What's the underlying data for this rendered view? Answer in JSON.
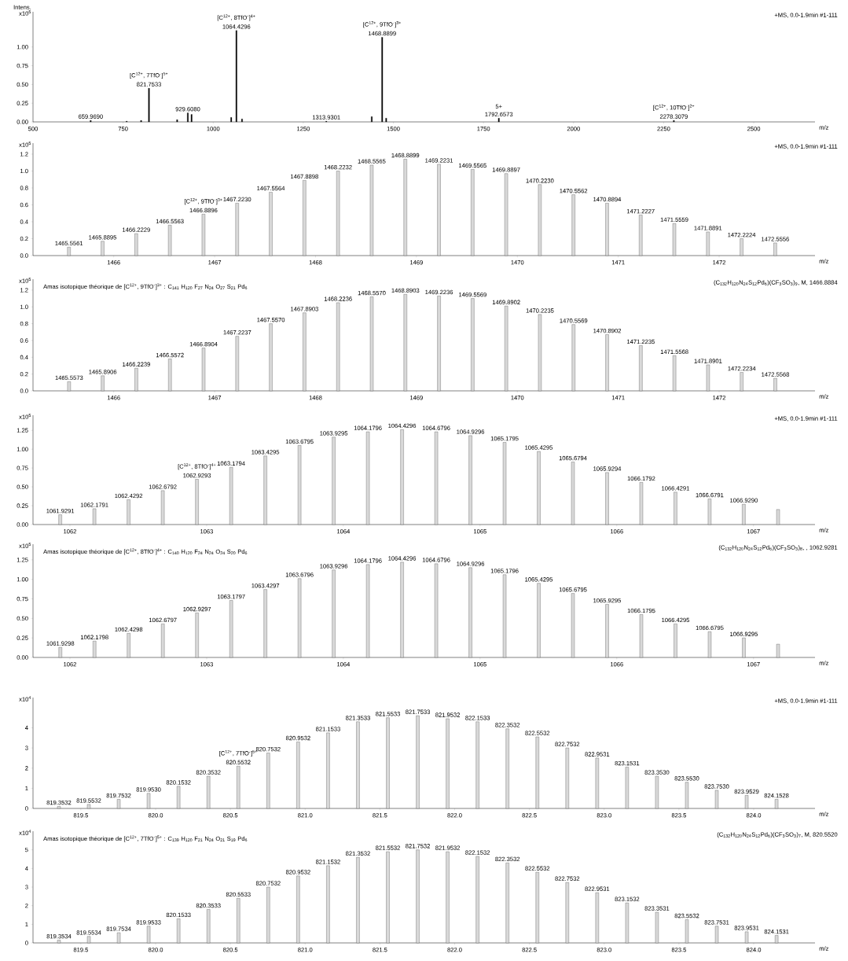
{
  "chart_data": [
    {
      "type": "bar",
      "subtitle": "+MS, 0.0-1.9min #1-111",
      "ylabel": "x10$^{5}$",
      "xlabel": "m/z",
      "color": "#000000",
      "x": [
        659.969,
        760,
        800,
        821.7533,
        900,
        929.608,
        940,
        1050,
        1064.4296,
        1080,
        1313.9301,
        1440,
        1468.8899,
        1480,
        1792.6573,
        2278.3079
      ],
      "values": [
        0.02,
        0.01,
        0.02,
        0.45,
        0.03,
        0.12,
        0.1,
        0.06,
        1.22,
        0.04,
        0.01,
        0.07,
        1.13,
        0.05,
        0.05,
        0.02
      ],
      "xlim": [
        500,
        2670
      ],
      "ylim": [
        0,
        1.47
      ],
      "xticks": [
        500,
        750,
        1000,
        1250,
        1500,
        1750,
        2000,
        2250,
        2500
      ],
      "yticks": [
        {
          "value": 0,
          "label": "0.00"
        },
        {
          "value": 0.25,
          "label": "0.25"
        },
        {
          "value": 0.5,
          "label": "0.50"
        },
        {
          "value": 0.75,
          "label": "0.75"
        },
        {
          "value": 1,
          "label": "1.00"
        }
      ],
      "annotations": [
        "Intens.",
        {
          "text": "659.9690",
          "x": 659.969,
          "y": 0.02
        },
        {
          "text": "821.7533",
          "x": 821.7533,
          "y": 0.45
        },
        {
          "text": "929.6080",
          "x": 929.608,
          "y": 0.12
        },
        {
          "text": "1064.4296",
          "x": 1064.4296,
          "y": 1.22
        },
        {
          "text": "1313.9301",
          "x": 1313.9301,
          "y": 0.01
        },
        {
          "text": "1468.8899",
          "x": 1468.8899,
          "y": 1.13
        },
        {
          "text": "1792.6573",
          "x": 1792.6573,
          "y": 0.05
        },
        {
          "text": "2278.3079",
          "x": 2278.3079,
          "y": 0.02
        },
        {
          "text": "[C$^{12+}$, 7TfO$^{-}$]$^{5+}$",
          "x": 821.7533,
          "y": 0.45
        },
        {
          "text": "[C$^{12+}$, 8TfO$^{-}$]$^{4+}$",
          "x": 1064.4296,
          "y": 1.22
        },
        {
          "text": "[C$^{12+}$, 9TfO$^{-}$]$^{3+}$",
          "x": 1468.8899,
          "y": 1.13
        },
        {
          "text": "5+",
          "x": 1792.6573,
          "y": 0.05
        },
        {
          "text": "[C$^{12+}$, 10TfO$^{-}$]$^{2+}$",
          "x": 2278.3079,
          "y": 0.02
        }
      ]
    },
    {
      "type": "bar",
      "subtitle": "+MS, 0.0-1.9min #1-111",
      "ylabel": "x10$^{5}$",
      "xlabel": "m/z",
      "color": "#d9d9d9",
      "x": [
        1465.5561,
        1465.8895,
        1466.2229,
        1466.5563,
        1466.8896,
        1467.223,
        1467.5564,
        1467.8898,
        1468.2232,
        1468.5565,
        1468.8899,
        1469.2231,
        1469.5565,
        1469.8897,
        1470.223,
        1470.5562,
        1470.8894,
        1471.2227,
        1471.5559,
        1471.8891,
        1472.2224,
        1472.5556
      ],
      "values": [
        0.1,
        0.17,
        0.26,
        0.36,
        0.49,
        0.62,
        0.75,
        0.89,
        1.0,
        1.07,
        1.14,
        1.08,
        1.02,
        0.97,
        0.84,
        0.72,
        0.62,
        0.48,
        0.38,
        0.28,
        0.2,
        0.15
      ],
      "xlim": [
        1465.2,
        1472.95
      ],
      "ylim": [
        0,
        1.33
      ],
      "xticks": [
        1466,
        1467,
        1468,
        1469,
        1470,
        1471,
        1472
      ],
      "yticks": [
        {
          "value": 0,
          "label": "0.0"
        },
        0.2,
        0.4,
        0.6,
        0.8,
        {
          "value": 1,
          "label": "1.0"
        },
        1.2
      ],
      "annotations": [
        {
          "text": "1465.5561",
          "x": 1465.5561,
          "y": 0.1
        },
        {
          "text": "1465.8895",
          "x": 1465.8895,
          "y": 0.17
        },
        {
          "text": "1466.2229",
          "x": 1466.2229,
          "y": 0.26
        },
        {
          "text": "1466.5563",
          "x": 1466.5563,
          "y": 0.36
        },
        {
          "text": "1466.8896",
          "x": 1466.8896,
          "y": 0.49
        },
        {
          "text": "1467.2230",
          "x": 1467.223,
          "y": 0.62
        },
        {
          "text": "1467.5564",
          "x": 1467.5564,
          "y": 0.75
        },
        {
          "text": "1467.8898",
          "x": 1467.8898,
          "y": 0.89
        },
        {
          "text": "1468.2232",
          "x": 1468.2232,
          "y": 1.0
        },
        {
          "text": "1468.5565",
          "x": 1468.5565,
          "y": 1.07
        },
        {
          "text": "1468.8899",
          "x": 1468.8899,
          "y": 1.14
        },
        {
          "text": "1469.2231",
          "x": 1469.2231,
          "y": 1.08
        },
        {
          "text": "1469.5565",
          "x": 1469.5565,
          "y": 1.02
        },
        {
          "text": "1469.8897",
          "x": 1469.8897,
          "y": 0.97
        },
        {
          "text": "1470.2230",
          "x": 1470.223,
          "y": 0.84
        },
        {
          "text": "1470.5562",
          "x": 1470.5562,
          "y": 0.72
        },
        {
          "text": "1470.8894",
          "x": 1470.8894,
          "y": 0.62
        },
        {
          "text": "1471.2227",
          "x": 1471.2227,
          "y": 0.48
        },
        {
          "text": "1471.5559",
          "x": 1471.5559,
          "y": 0.38
        },
        {
          "text": "1471.8891",
          "x": 1471.8891,
          "y": 0.28
        },
        {
          "text": "1472.2224",
          "x": 1472.2224,
          "y": 0.2
        },
        {
          "text": "1472.5556",
          "x": 1472.5556,
          "y": 0.15
        },
        {
          "text": "[C$^{12+}$, 9TfO$^{-}$]$^{3+}$",
          "x": 1466.8896,
          "y": 0.49
        }
      ]
    },
    {
      "type": "bar",
      "title": "Amas isotopique théorique de [C$^{12+}$, 9TfO$^{-}$]$^{3+}$ : C$_{141}$ H$_{120}$ F$_{27}$ N$_{24}$ O$_{27}$ S$_{21}$ Pd$_{6}$",
      "subtitle": "(C$_{132}$H$_{120}$N$_{24}$S$_{12}$Pd$_{6}$)(CF$_{3}$SO$_{3}$)$_{9}$, M, 1466.8884",
      "ylabel": "x10$^{5}$",
      "xlabel": "m/z",
      "color": "#d9d9d9",
      "x": [
        1465.5573,
        1465.8906,
        1466.2239,
        1466.5572,
        1466.8904,
        1467.2237,
        1467.557,
        1467.8903,
        1468.2236,
        1468.557,
        1468.8903,
        1469.2236,
        1469.5569,
        1469.8902,
        1470.2235,
        1470.5569,
        1470.8902,
        1471.2235,
        1471.5568,
        1471.8901,
        1472.2234,
        1472.5568
      ],
      "values": [
        0.11,
        0.18,
        0.27,
        0.38,
        0.51,
        0.65,
        0.8,
        0.93,
        1.05,
        1.12,
        1.15,
        1.13,
        1.1,
        1.01,
        0.91,
        0.79,
        0.67,
        0.54,
        0.42,
        0.31,
        0.22,
        0.15
      ],
      "xlim": [
        1465.2,
        1472.95
      ],
      "ylim": [
        0,
        1.33
      ],
      "xticks": [
        1466,
        1467,
        1468,
        1469,
        1470,
        1471,
        1472
      ],
      "yticks": [
        {
          "value": 0,
          "label": "0.0"
        },
        0.2,
        0.4,
        0.6,
        0.8,
        {
          "value": 1,
          "label": "1.0"
        },
        1.2
      ],
      "annotations": [
        {
          "text": "1465.5573",
          "x": 1465.5573,
          "y": 0.11
        },
        {
          "text": "1465.8906",
          "x": 1465.8906,
          "y": 0.18
        },
        {
          "text": "1466.2239",
          "x": 1466.2239,
          "y": 0.27
        },
        {
          "text": "1466.5572",
          "x": 1466.5572,
          "y": 0.38
        },
        {
          "text": "1466.8904",
          "x": 1466.8904,
          "y": 0.51
        },
        {
          "text": "1467.2237",
          "x": 1467.2237,
          "y": 0.65
        },
        {
          "text": "1467.5570",
          "x": 1467.557,
          "y": 0.8
        },
        {
          "text": "1467.8903",
          "x": 1467.8903,
          "y": 0.93
        },
        {
          "text": "1468.2236",
          "x": 1468.2236,
          "y": 1.05
        },
        {
          "text": "1468.5570",
          "x": 1468.557,
          "y": 1.12
        },
        {
          "text": "1468.8903",
          "x": 1468.8903,
          "y": 1.15
        },
        {
          "text": "1469.2236",
          "x": 1469.2236,
          "y": 1.13
        },
        {
          "text": "1469.5569",
          "x": 1469.5569,
          "y": 1.1
        },
        {
          "text": "1469.8902",
          "x": 1469.8902,
          "y": 1.01
        },
        {
          "text": "1470.2235",
          "x": 1470.2235,
          "y": 0.91
        },
        {
          "text": "1470.5569",
          "x": 1470.5569,
          "y": 0.79
        },
        {
          "text": "1470.8902",
          "x": 1470.8902,
          "y": 0.67
        },
        {
          "text": "1471.2235",
          "x": 1471.2235,
          "y": 0.54
        },
        {
          "text": "1471.5568",
          "x": 1471.5568,
          "y": 0.42
        },
        {
          "text": "1471.8901",
          "x": 1471.8901,
          "y": 0.31
        },
        {
          "text": "1472.2234",
          "x": 1472.2234,
          "y": 0.22
        },
        {
          "text": "1472.5568",
          "x": 1472.5568,
          "y": 0.15
        }
      ]
    },
    {
      "type": "bar",
      "subtitle": "+MS, 0.0-1.9min #1-111",
      "ylabel": "x10$^{5}$",
      "xlabel": "m/z",
      "color": "#d9d9d9",
      "x": [
        1061.9291,
        1062.1791,
        1062.4292,
        1062.6792,
        1062.9293,
        1063.1794,
        1063.4295,
        1063.6795,
        1063.9295,
        1064.1796,
        1064.4296,
        1064.6796,
        1064.9296,
        1065.1795,
        1065.4295,
        1065.6794,
        1065.9294,
        1066.1792,
        1066.4291,
        1066.6791,
        1066.929,
        1067.18
      ],
      "values": [
        0.13,
        0.21,
        0.33,
        0.45,
        0.6,
        0.76,
        0.91,
        1.05,
        1.16,
        1.23,
        1.26,
        1.23,
        1.18,
        1.09,
        0.97,
        0.83,
        0.69,
        0.56,
        0.43,
        0.34,
        0.27,
        0.2
      ],
      "xlim": [
        1061.73,
        1067.45
      ],
      "ylim": [
        0,
        1.45
      ],
      "xticks": [
        1062,
        1063,
        1064,
        1065,
        1066,
        1067
      ],
      "yticks": [
        {
          "value": 0,
          "label": "0.00"
        },
        0.25,
        {
          "value": 0.5,
          "label": "0.50"
        },
        0.75,
        {
          "value": 1,
          "label": "1.00"
        },
        1.25
      ],
      "annotations": [
        {
          "text": "1061.9291",
          "x": 1061.9291,
          "y": 0.13
        },
        {
          "text": "1062.1791",
          "x": 1062.1791,
          "y": 0.21
        },
        {
          "text": "1062.4292",
          "x": 1062.4292,
          "y": 0.33
        },
        {
          "text": "1062.6792",
          "x": 1062.6792,
          "y": 0.45
        },
        {
          "text": "1062.9293",
          "x": 1062.9293,
          "y": 0.6
        },
        {
          "text": "1063.1794",
          "x": 1063.1794,
          "y": 0.76
        },
        {
          "text": "1063.4295",
          "x": 1063.4295,
          "y": 0.91
        },
        {
          "text": "1063.6795",
          "x": 1063.6795,
          "y": 1.05
        },
        {
          "text": "1063.9295",
          "x": 1063.9295,
          "y": 1.16
        },
        {
          "text": "1064.1796",
          "x": 1064.1796,
          "y": 1.23
        },
        {
          "text": "1064.4296",
          "x": 1064.4296,
          "y": 1.26
        },
        {
          "text": "1064.6796",
          "x": 1064.6796,
          "y": 1.23
        },
        {
          "text": "1064.9296",
          "x": 1064.9296,
          "y": 1.18
        },
        {
          "text": "1065.1795",
          "x": 1065.1795,
          "y": 1.09
        },
        {
          "text": "1065.4295",
          "x": 1065.4295,
          "y": 0.97
        },
        {
          "text": "1065.6794",
          "x": 1065.6794,
          "y": 0.83
        },
        {
          "text": "1065.9294",
          "x": 1065.9294,
          "y": 0.69
        },
        {
          "text": "1066.1792",
          "x": 1066.1792,
          "y": 0.56
        },
        {
          "text": "1066.4291",
          "x": 1066.4291,
          "y": 0.43
        },
        {
          "text": "1066.6791",
          "x": 1066.6791,
          "y": 0.34
        },
        {
          "text": "1066.9290",
          "x": 1066.929,
          "y": 0.27
        },
        {
          "text": "[C$^{12+}$, 8TfO$^{-}$]$^{4+}$",
          "x": 1062.9293,
          "y": 0.6
        }
      ]
    },
    {
      "type": "bar",
      "title": "Amas isotopique théorique de [C$^{12+}$, 8TfO$^{-}$]$^{4+}$ : C$_{140}$ H$_{120}$ F$_{24}$ N$_{24}$ O$_{24}$ S$_{20}$ Pd$_{6}$",
      "subtitle": "(C$_{132}$H$_{120}$N$_{24}$S$_{12}$Pd$_{6}$)(CF$_{3}$SO$_{3}$)$_{8}$, , 1062.9281",
      "ylabel": "x10$^{5}$",
      "xlabel": "m/z",
      "color": "#d9d9d9",
      "x": [
        1061.9298,
        1062.1798,
        1062.4298,
        1062.6797,
        1062.9297,
        1063.1797,
        1063.4297,
        1063.6796,
        1063.9296,
        1064.1796,
        1064.4296,
        1064.6796,
        1064.9296,
        1065.1796,
        1065.4295,
        1065.6795,
        1065.9295,
        1066.1795,
        1066.4295,
        1066.6795,
        1066.9295,
        1067.18
      ],
      "values": [
        0.13,
        0.21,
        0.31,
        0.43,
        0.57,
        0.73,
        0.87,
        1.01,
        1.12,
        1.19,
        1.22,
        1.2,
        1.15,
        1.06,
        0.95,
        0.82,
        0.68,
        0.55,
        0.43,
        0.33,
        0.25,
        0.17
      ],
      "xlim": [
        1061.73,
        1067.45
      ],
      "ylim": [
        0,
        1.45
      ],
      "xticks": [
        1062,
        1063,
        1064,
        1065,
        1066,
        1067
      ],
      "yticks": [
        {
          "value": 0,
          "label": "0.00"
        },
        0.25,
        {
          "value": 0.5,
          "label": "0.50"
        },
        0.75,
        {
          "value": 1,
          "label": "1.00"
        },
        1.25
      ],
      "annotations": [
        {
          "text": "1061.9298",
          "x": 1061.9298,
          "y": 0.13
        },
        {
          "text": "1062.1798",
          "x": 1062.1798,
          "y": 0.21
        },
        {
          "text": "1062.4298",
          "x": 1062.4298,
          "y": 0.31
        },
        {
          "text": "1062.6797",
          "x": 1062.6797,
          "y": 0.43
        },
        {
          "text": "1062.9297",
          "x": 1062.9297,
          "y": 0.57
        },
        {
          "text": "1063.1797",
          "x": 1063.1797,
          "y": 0.73
        },
        {
          "text": "1063.4297",
          "x": 1063.4297,
          "y": 0.87
        },
        {
          "text": "1063.6796",
          "x": 1063.6796,
          "y": 1.01
        },
        {
          "text": "1063.9296",
          "x": 1063.9296,
          "y": 1.12
        },
        {
          "text": "1064.1796",
          "x": 1064.1796,
          "y": 1.19
        },
        {
          "text": "1064.4296",
          "x": 1064.4296,
          "y": 1.22
        },
        {
          "text": "1064.6796",
          "x": 1064.6796,
          "y": 1.2
        },
        {
          "text": "1064.9296",
          "x": 1064.9296,
          "y": 1.15
        },
        {
          "text": "1065.1796",
          "x": 1065.1796,
          "y": 1.06
        },
        {
          "text": "1065.4295",
          "x": 1065.4295,
          "y": 0.95
        },
        {
          "text": "1065.6795",
          "x": 1065.6795,
          "y": 0.82
        },
        {
          "text": "1065.9295",
          "x": 1065.9295,
          "y": 0.68
        },
        {
          "text": "1066.1795",
          "x": 1066.1795,
          "y": 0.55
        },
        {
          "text": "1066.4295",
          "x": 1066.4295,
          "y": 0.43
        },
        {
          "text": "1066.6795",
          "x": 1066.6795,
          "y": 0.33
        },
        {
          "text": "1066.9295",
          "x": 1066.9295,
          "y": 0.25
        }
      ]
    },
    {
      "type": "bar",
      "subtitle": "+MS, 0.0-1.9min #1-111",
      "ylabel": "x10$^{4}$",
      "xlabel": "m/z",
      "color": "#d9d9d9",
      "x": [
        819.3532,
        819.5532,
        819.7532,
        819.953,
        820.1532,
        820.3532,
        820.5532,
        820.7532,
        820.9532,
        821.1533,
        821.3533,
        821.5533,
        821.7533,
        821.9532,
        822.1533,
        822.3532,
        822.5532,
        822.7532,
        822.9531,
        823.1531,
        823.353,
        823.553,
        823.753,
        823.9529,
        824.1528
      ],
      "values": [
        0.1,
        0.2,
        0.45,
        0.75,
        1.1,
        1.6,
        2.1,
        2.75,
        3.3,
        3.75,
        4.3,
        4.5,
        4.6,
        4.45,
        4.3,
        3.95,
        3.55,
        3.0,
        2.5,
        2.05,
        1.6,
        1.3,
        0.9,
        0.65,
        0.45
      ],
      "xlim": [
        819.18,
        824.41
      ],
      "ylim": [
        0,
        5.5
      ],
      "xticks": [
        819.5,
        {
          "value": 820,
          "label": "820.0"
        },
        820.5,
        {
          "value": 821,
          "label": "821.0"
        },
        821.5,
        {
          "value": 822,
          "label": "822.0"
        },
        822.5,
        {
          "value": 823,
          "label": "823.0"
        },
        823.5,
        {
          "value": 824,
          "label": "824.0"
        }
      ],
      "yticks": [
        0,
        1,
        2,
        3,
        4
      ],
      "annotations": [
        {
          "text": "819.3532",
          "x": 819.3532,
          "y": 0.1
        },
        {
          "text": "819.5532",
          "x": 819.5532,
          "y": 0.2
        },
        {
          "text": "819.7532",
          "x": 819.7532,
          "y": 0.45
        },
        {
          "text": "819.9530",
          "x": 819.953,
          "y": 0.75
        },
        {
          "text": "820.1532",
          "x": 820.1532,
          "y": 1.1
        },
        {
          "text": "820.3532",
          "x": 820.3532,
          "y": 1.6
        },
        {
          "text": "820.5532",
          "x": 820.5532,
          "y": 2.1
        },
        {
          "text": "820.7532",
          "x": 820.7532,
          "y": 2.75
        },
        {
          "text": "820.9532",
          "x": 820.9532,
          "y": 3.3
        },
        {
          "text": "821.1533",
          "x": 821.1533,
          "y": 3.75
        },
        {
          "text": "821.3533",
          "x": 821.3533,
          "y": 4.3
        },
        {
          "text": "821.5533",
          "x": 821.5533,
          "y": 4.5
        },
        {
          "text": "821.7533",
          "x": 821.7533,
          "y": 4.6
        },
        {
          "text": "821.9532",
          "x": 821.9532,
          "y": 4.45
        },
        {
          "text": "822.1533",
          "x": 822.1533,
          "y": 4.3
        },
        {
          "text": "822.3532",
          "x": 822.3532,
          "y": 3.95
        },
        {
          "text": "822.5532",
          "x": 822.5532,
          "y": 3.55
        },
        {
          "text": "822.7532",
          "x": 822.7532,
          "y": 3.0
        },
        {
          "text": "822.9531",
          "x": 822.9531,
          "y": 2.5
        },
        {
          "text": "823.1531",
          "x": 823.1531,
          "y": 2.05
        },
        {
          "text": "823.3530",
          "x": 823.353,
          "y": 1.6
        },
        {
          "text": "823.5530",
          "x": 823.553,
          "y": 1.3
        },
        {
          "text": "823.7530",
          "x": 823.753,
          "y": 0.9
        },
        {
          "text": "823.9529",
          "x": 823.9529,
          "y": 0.65
        },
        {
          "text": "824.1528",
          "x": 824.1528,
          "y": 0.45
        },
        {
          "text": "[C$^{12+}$, 7TfO$^{-}$]$^{5+}$",
          "x": 820.5532,
          "y": 2.1
        }
      ]
    },
    {
      "type": "bar",
      "title": "Amas isotopique théorique de [C$^{12+}$, 7TfO$^{-}$]$^{5+}$ : C$_{139}$ H$_{120}$ F$_{21}$ N$_{24}$ O$_{21}$ S$_{19}$ Pd$_{6}$",
      "subtitle": "(C$_{132}$H$_{120}$N$_{24}$S$_{12}$Pd$_{6}$)(CF$_{3}$SO$_{3}$)$_{7}$, M, 820.5520",
      "ylabel": "x10$^{4}$",
      "xlabel": "m/z",
      "color": "#d9d9d9",
      "x": [
        819.3534,
        819.5534,
        819.7534,
        819.9533,
        820.1533,
        820.3533,
        820.5533,
        820.7532,
        820.9532,
        821.1532,
        821.3532,
        821.5532,
        821.7532,
        821.9532,
        822.1532,
        822.3532,
        822.5532,
        822.7532,
        822.9531,
        823.1532,
        823.3531,
        823.5532,
        823.7531,
        823.9531,
        824.1531
      ],
      "values": [
        0.15,
        0.35,
        0.55,
        0.9,
        1.3,
        1.8,
        2.4,
        3.0,
        3.6,
        4.15,
        4.6,
        4.9,
        5.0,
        4.9,
        4.65,
        4.3,
        3.8,
        3.25,
        2.7,
        2.15,
        1.65,
        1.25,
        0.9,
        0.6,
        0.4
      ],
      "xlim": [
        819.18,
        824.41
      ],
      "ylim": [
        0,
        6
      ],
      "xticks": [
        819.5,
        {
          "value": 820,
          "label": "820.0"
        },
        820.5,
        {
          "value": 821,
          "label": "821.0"
        },
        821.5,
        {
          "value": 822,
          "label": "822.0"
        },
        822.5,
        {
          "value": 823,
          "label": "823.0"
        },
        823.5,
        {
          "value": 824,
          "label": "824.0"
        }
      ],
      "yticks": [
        0,
        1,
        2,
        3,
        4,
        5
      ],
      "annotations": [
        {
          "text": "819.3534",
          "x": 819.3534,
          "y": 0.15
        },
        {
          "text": "819.5534",
          "x": 819.5534,
          "y": 0.35
        },
        {
          "text": "819.7534",
          "x": 819.7534,
          "y": 0.55
        },
        {
          "text": "819.9533",
          "x": 819.9533,
          "y": 0.9
        },
        {
          "text": "820.1533",
          "x": 820.1533,
          "y": 1.3
        },
        {
          "text": "820.3533",
          "x": 820.3533,
          "y": 1.8
        },
        {
          "text": "820.5533",
          "x": 820.5533,
          "y": 2.4
        },
        {
          "text": "820.7532",
          "x": 820.7532,
          "y": 3.0
        },
        {
          "text": "820.9532",
          "x": 820.9532,
          "y": 3.6
        },
        {
          "text": "821.1532",
          "x": 821.1532,
          "y": 4.15
        },
        {
          "text": "821.3532",
          "x": 821.3532,
          "y": 4.6
        },
        {
          "text": "821.5532",
          "x": 821.5532,
          "y": 4.9
        },
        {
          "text": "821.7532",
          "x": 821.7532,
          "y": 5.0
        },
        {
          "text": "821.9532",
          "x": 821.9532,
          "y": 4.9
        },
        {
          "text": "822.1532",
          "x": 822.1532,
          "y": 4.65
        },
        {
          "text": "822.3532",
          "x": 822.3532,
          "y": 4.3
        },
        {
          "text": "822.5532",
          "x": 822.5532,
          "y": 3.8
        },
        {
          "text": "822.7532",
          "x": 822.7532,
          "y": 3.25
        },
        {
          "text": "822.9531",
          "x": 822.9531,
          "y": 2.7
        },
        {
          "text": "823.1532",
          "x": 823.1532,
          "y": 2.15
        },
        {
          "text": "823.3531",
          "x": 823.3531,
          "y": 1.65
        },
        {
          "text": "823.5532",
          "x": 823.5532,
          "y": 1.25
        },
        {
          "text": "823.7531",
          "x": 823.7531,
          "y": 0.9
        },
        {
          "text": "823.9531",
          "x": 823.9531,
          "y": 0.6
        },
        {
          "text": "824.1531",
          "x": 824.1531,
          "y": 0.4
        }
      ]
    }
  ]
}
